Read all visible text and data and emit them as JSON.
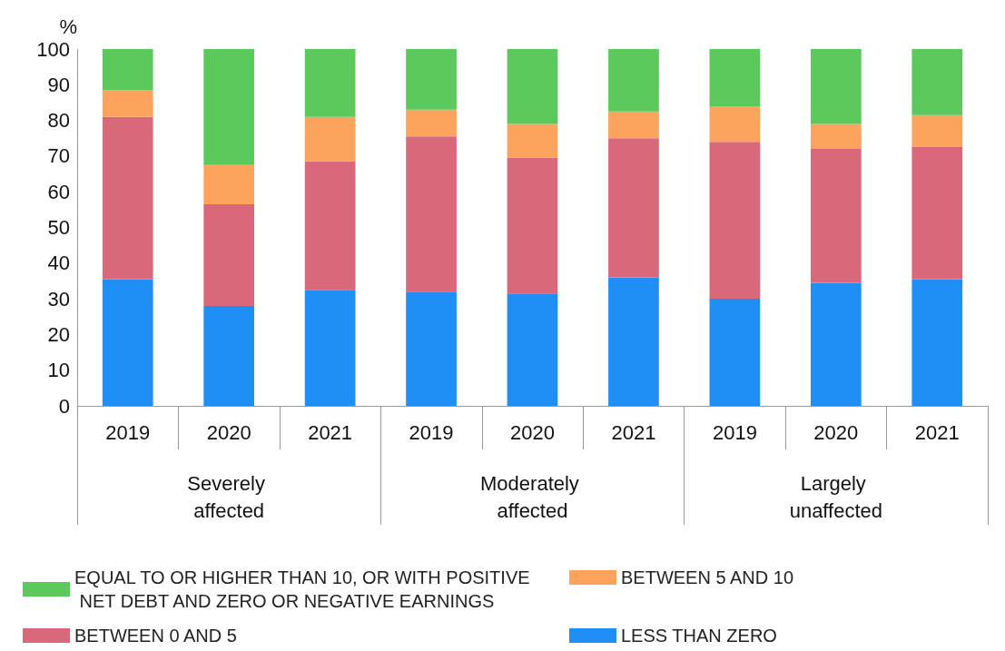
{
  "chart_data": {
    "type": "bar",
    "stacked": true,
    "ylabel": "%",
    "categories": [
      "2019",
      "2020",
      "2021",
      "2019",
      "2020",
      "2021",
      "2019",
      "2020",
      "2021"
    ],
    "annotations": [
      "Severely affected",
      "Moderately affected",
      "Largely unaffected"
    ],
    "series": [
      {
        "name": "LESS THAN ZERO",
        "color": "#1f8ff5",
        "values": [
          35.5,
          28,
          32.5,
          32,
          31.5,
          36,
          30,
          34.5,
          35.5
        ]
      },
      {
        "name": "BETWEEN 0 AND 5",
        "color": "#d9697a",
        "values": [
          45.5,
          28.5,
          36,
          43.5,
          38,
          39,
          44,
          37.5,
          37
        ]
      },
      {
        "name": "BETWEEN 5 AND 10",
        "color": "#fca35d",
        "values": [
          7.5,
          11,
          12.5,
          7.5,
          9.5,
          7.5,
          10,
          7,
          9
        ]
      },
      {
        "name": "EQUAL TO OR HIGHER THAN 10, OR WITH POSITIVE NET DEBT AND ZERO OR NEGATIVE EARNINGS",
        "color": "#5bc95b",
        "values": [
          11.5,
          32.5,
          19,
          17,
          21,
          17.5,
          16,
          21,
          18.5
        ]
      }
    ],
    "ylim": [
      0,
      100
    ],
    "yticks": [
      0,
      10,
      20,
      30,
      40,
      50,
      60,
      70,
      80,
      90,
      100
    ],
    "legend": "bottom"
  }
}
